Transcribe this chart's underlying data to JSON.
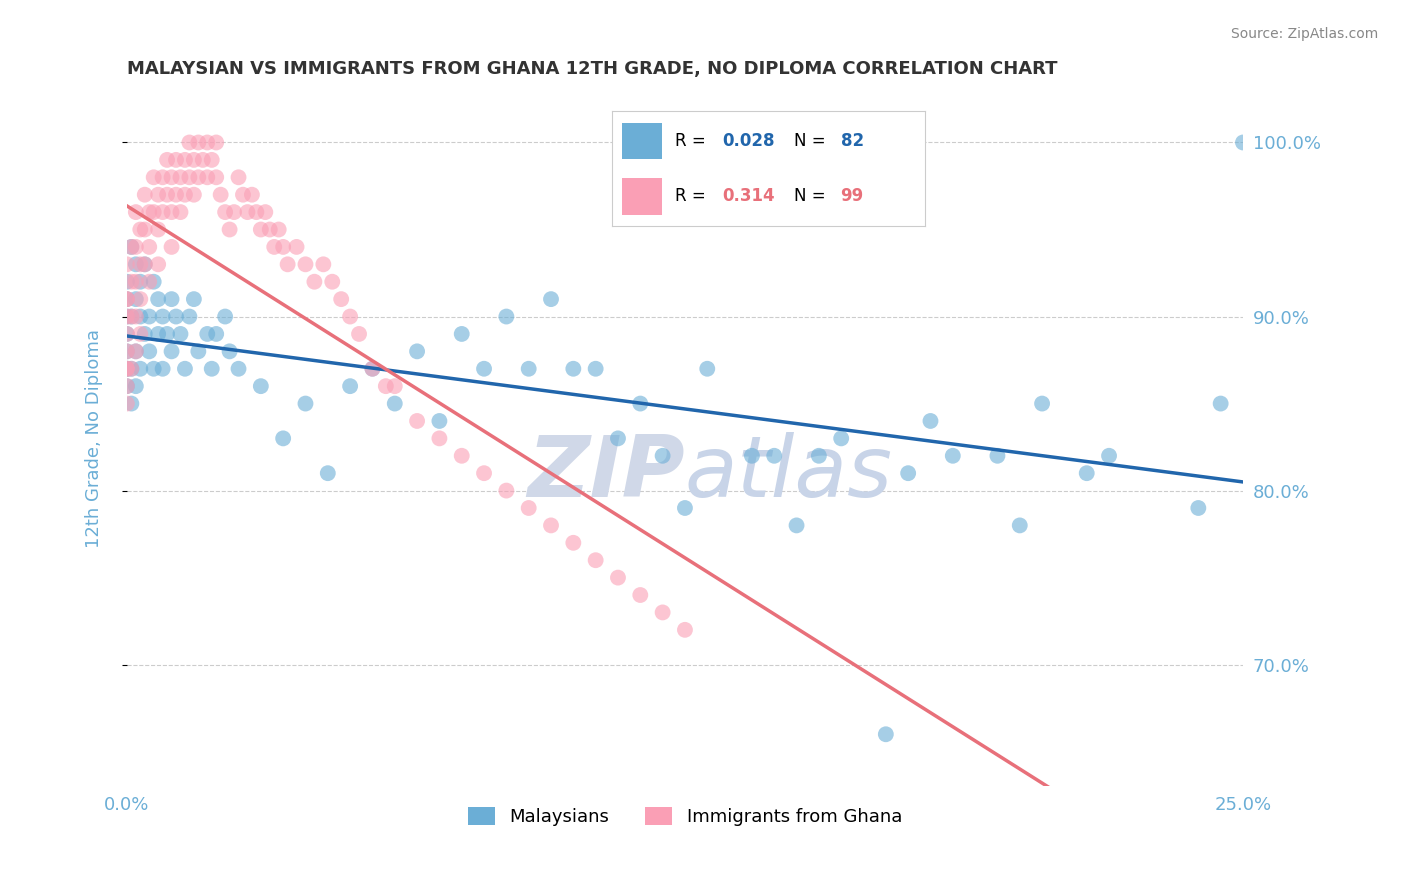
{
  "title": "MALAYSIAN VS IMMIGRANTS FROM GHANA 12TH GRADE, NO DIPLOMA CORRELATION CHART",
  "source_text": "Source: ZipAtlas.com",
  "xlabel": "",
  "ylabel": "12th Grade, No Diploma",
  "x_min": 0.0,
  "x_max": 0.25,
  "y_min": 0.63,
  "y_max": 1.03,
  "y_tick_values": [
    0.7,
    0.8,
    0.9,
    1.0
  ],
  "legend_r1": "0.028",
  "legend_n1": "82",
  "legend_r2": "0.314",
  "legend_n2": "99",
  "legend_label1": "Malaysians",
  "legend_label2": "Immigrants from Ghana",
  "blue_color": "#6baed6",
  "pink_color": "#fa9fb5",
  "blue_line_color": "#2166ac",
  "pink_line_color": "#e8707a",
  "axis_label_color": "#6baed6",
  "grid_color": "#cccccc",
  "title_color": "#333333",
  "watermark_color": "#d0d8e8",
  "blue_scatter": {
    "x": [
      0.0,
      0.0,
      0.0,
      0.0,
      0.0,
      0.0,
      0.0,
      0.0,
      0.001,
      0.001,
      0.001,
      0.001,
      0.002,
      0.002,
      0.002,
      0.002,
      0.003,
      0.003,
      0.003,
      0.004,
      0.004,
      0.005,
      0.005,
      0.006,
      0.006,
      0.007,
      0.007,
      0.008,
      0.008,
      0.009,
      0.01,
      0.01,
      0.011,
      0.012,
      0.013,
      0.014,
      0.015,
      0.016,
      0.018,
      0.019,
      0.02,
      0.022,
      0.023,
      0.025,
      0.03,
      0.035,
      0.04,
      0.045,
      0.05,
      0.055,
      0.06,
      0.065,
      0.07,
      0.075,
      0.08,
      0.085,
      0.09,
      0.095,
      0.1,
      0.105,
      0.11,
      0.115,
      0.12,
      0.125,
      0.13,
      0.14,
      0.145,
      0.15,
      0.155,
      0.16,
      0.17,
      0.175,
      0.18,
      0.185,
      0.195,
      0.2,
      0.205,
      0.215,
      0.22,
      0.24,
      0.245,
      0.25
    ],
    "y": [
      0.88,
      0.92,
      0.87,
      0.9,
      0.91,
      0.87,
      0.89,
      0.86,
      0.94,
      0.9,
      0.87,
      0.85,
      0.93,
      0.91,
      0.88,
      0.86,
      0.92,
      0.9,
      0.87,
      0.93,
      0.89,
      0.9,
      0.88,
      0.92,
      0.87,
      0.91,
      0.89,
      0.9,
      0.87,
      0.89,
      0.91,
      0.88,
      0.9,
      0.89,
      0.87,
      0.9,
      0.91,
      0.88,
      0.89,
      0.87,
      0.89,
      0.9,
      0.88,
      0.87,
      0.86,
      0.83,
      0.85,
      0.81,
      0.86,
      0.87,
      0.85,
      0.88,
      0.84,
      0.89,
      0.87,
      0.9,
      0.87,
      0.91,
      0.87,
      0.87,
      0.83,
      0.85,
      0.82,
      0.79,
      0.87,
      0.82,
      0.82,
      0.78,
      0.82,
      0.83,
      0.66,
      0.81,
      0.84,
      0.82,
      0.82,
      0.78,
      0.85,
      0.81,
      0.82,
      0.79,
      0.85,
      1.0
    ]
  },
  "pink_scatter": {
    "x": [
      0.0,
      0.0,
      0.0,
      0.0,
      0.0,
      0.0,
      0.0,
      0.0,
      0.0,
      0.0,
      0.001,
      0.001,
      0.001,
      0.001,
      0.002,
      0.002,
      0.002,
      0.002,
      0.002,
      0.003,
      0.003,
      0.003,
      0.003,
      0.004,
      0.004,
      0.004,
      0.005,
      0.005,
      0.005,
      0.006,
      0.006,
      0.007,
      0.007,
      0.007,
      0.008,
      0.008,
      0.009,
      0.009,
      0.01,
      0.01,
      0.01,
      0.011,
      0.011,
      0.012,
      0.012,
      0.013,
      0.013,
      0.014,
      0.014,
      0.015,
      0.015,
      0.016,
      0.016,
      0.017,
      0.018,
      0.018,
      0.019,
      0.02,
      0.02,
      0.021,
      0.022,
      0.023,
      0.024,
      0.025,
      0.026,
      0.027,
      0.028,
      0.029,
      0.03,
      0.031,
      0.032,
      0.033,
      0.034,
      0.035,
      0.036,
      0.038,
      0.04,
      0.042,
      0.044,
      0.046,
      0.048,
      0.05,
      0.052,
      0.055,
      0.058,
      0.06,
      0.065,
      0.07,
      0.075,
      0.08,
      0.085,
      0.09,
      0.095,
      0.1,
      0.105,
      0.11,
      0.115,
      0.12,
      0.125
    ],
    "y": [
      0.87,
      0.91,
      0.89,
      0.86,
      0.88,
      0.9,
      0.87,
      0.85,
      0.93,
      0.91,
      0.94,
      0.92,
      0.9,
      0.87,
      0.96,
      0.94,
      0.92,
      0.9,
      0.88,
      0.95,
      0.93,
      0.91,
      0.89,
      0.97,
      0.95,
      0.93,
      0.96,
      0.94,
      0.92,
      0.98,
      0.96,
      0.97,
      0.95,
      0.93,
      0.98,
      0.96,
      0.99,
      0.97,
      0.98,
      0.96,
      0.94,
      0.99,
      0.97,
      0.98,
      0.96,
      0.99,
      0.97,
      1.0,
      0.98,
      0.99,
      0.97,
      1.0,
      0.98,
      0.99,
      1.0,
      0.98,
      0.99,
      1.0,
      0.98,
      0.97,
      0.96,
      0.95,
      0.96,
      0.98,
      0.97,
      0.96,
      0.97,
      0.96,
      0.95,
      0.96,
      0.95,
      0.94,
      0.95,
      0.94,
      0.93,
      0.94,
      0.93,
      0.92,
      0.93,
      0.92,
      0.91,
      0.9,
      0.89,
      0.87,
      0.86,
      0.86,
      0.84,
      0.83,
      0.82,
      0.81,
      0.8,
      0.79,
      0.78,
      0.77,
      0.76,
      0.75,
      0.74,
      0.73,
      0.72
    ]
  }
}
